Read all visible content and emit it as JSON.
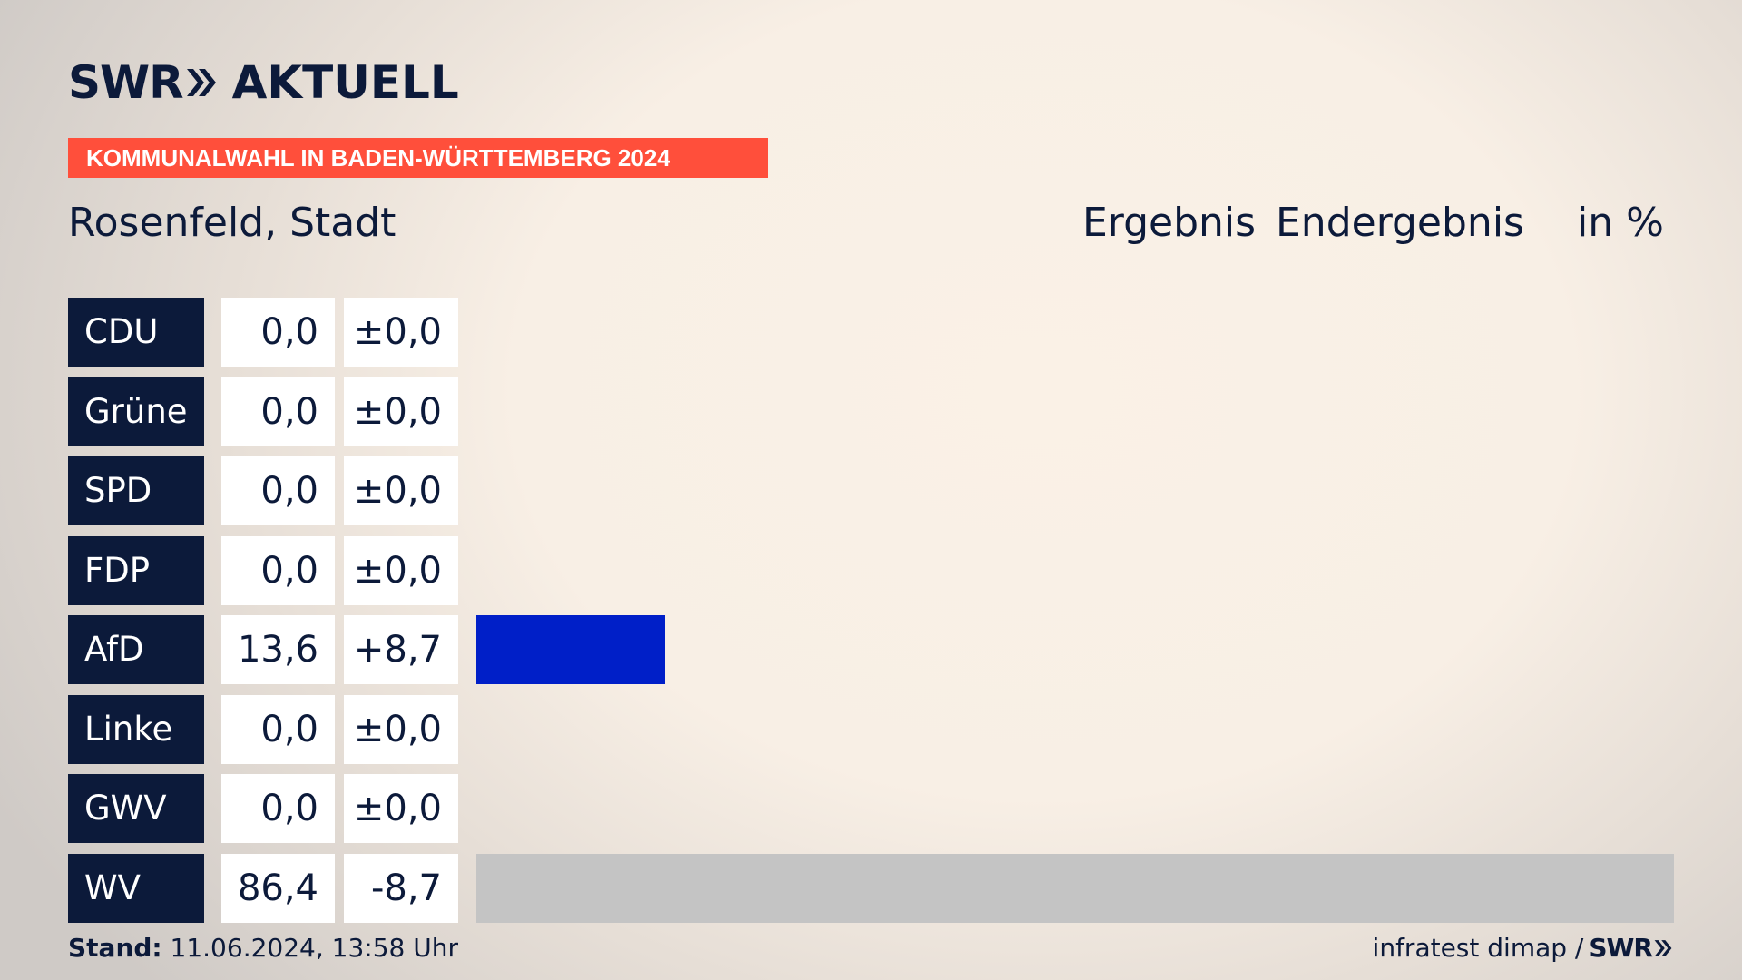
{
  "header": {
    "logo_text": "SWR",
    "logo_suffix": "AKTUELL",
    "banner": "KOMMUNALWAHL IN BADEN-WÜRTTEMBERG 2024",
    "region": "Rosenfeld, Stadt",
    "result_label": "Ergebnis",
    "status_label": "Endergebnis",
    "unit_label": "in %"
  },
  "colors": {
    "navy": "#0c1a3a",
    "accent": "#ff4f3b",
    "afd": "#001fc8",
    "wv": "#c4c4c4"
  },
  "chart_data": {
    "type": "bar",
    "orientation": "horizontal",
    "categories": [
      "CDU",
      "Grüne",
      "SPD",
      "FDP",
      "AfD",
      "Linke",
      "GWV",
      "WV"
    ],
    "series": [
      {
        "values": [
          0.0,
          0.0,
          0.0,
          0.0,
          13.6,
          0.0,
          0.0,
          86.4
        ]
      }
    ],
    "changes": [
      0.0,
      0.0,
      0.0,
      0.0,
      8.7,
      0.0,
      0.0,
      -8.7
    ],
    "value_labels": [
      "0,0",
      "0,0",
      "0,0",
      "0,0",
      "13,6",
      "0,0",
      "0,0",
      "86,4"
    ],
    "change_labels": [
      "±0,0",
      "±0,0",
      "±0,0",
      "±0,0",
      "+8,7",
      "±0,0",
      "±0,0",
      "-8,7"
    ],
    "bar_colors": [
      "#000000",
      "#1aa037",
      "#e3000f",
      "#ffed00",
      "#001fc8",
      "#be3075",
      "#8a8a8a",
      "#c4c4c4"
    ],
    "xlim": [
      0,
      86.4
    ],
    "grid": false
  },
  "footer": {
    "stand_label": "Stand:",
    "stand_value": "11.06.2024, 13:58 Uhr",
    "source": "infratest dimap /",
    "source_logo": "SWR"
  }
}
